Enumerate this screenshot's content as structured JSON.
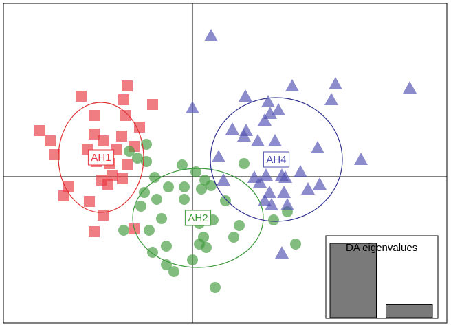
{
  "chart_data": {
    "type": "scatter",
    "xlim": [
      -2.75,
      3.7
    ],
    "ylim": [
      -2.13,
      2.52
    ],
    "series": [
      {
        "name": "AH1",
        "color": "#e8383d",
        "marker": "square",
        "x": [
          -0.95,
          -1.0,
          -0.58,
          -1.62,
          -1.42,
          -0.98,
          -0.77,
          -2.22,
          -2.07,
          -2.0,
          -1.43,
          -1.3,
          -1.03,
          -0.85,
          -1.53,
          -1.1,
          -1.2,
          -1.4,
          -1.17,
          -1.02,
          -1.32,
          -1.8,
          -1.87,
          -1.5,
          -1.3,
          -1.43,
          -0.85,
          -0.95,
          -1.23
        ],
        "y": [
          1.32,
          1.12,
          1.05,
          1.17,
          0.89,
          0.89,
          0.72,
          0.67,
          0.52,
          0.32,
          0.62,
          0.52,
          0.59,
          0.44,
          0.4,
          0.39,
          0.19,
          0.22,
          0.02,
          -0.03,
          -0.05,
          -0.15,
          -0.28,
          -0.36,
          -0.56,
          -0.8,
          -0.76,
          0.17,
          -0.11
        ],
        "ellipse": {
          "cx": -1.33,
          "cy": 0.28,
          "rx": 0.62,
          "ry": 0.8,
          "color": "#e03030"
        }
      },
      {
        "name": "AH2",
        "color": "#3f9a3a",
        "marker": "circle",
        "x": [
          -0.67,
          -0.8,
          -0.67,
          -0.15,
          -0.55,
          0.05,
          0.18,
          -0.7,
          -0.35,
          -0.12,
          0.13,
          0.27,
          -0.75,
          -0.52,
          -0.12,
          0.48,
          0.75,
          -0.45,
          0.1,
          0.3,
          0.68,
          -1.0,
          -0.63,
          -0.38,
          0.16,
          0.6,
          0.2,
          -0.58,
          0,
          -0.38,
          -0.27,
          0.33,
          1.18,
          1.38,
          1.5,
          -0.92,
          0.1
        ],
        "y": [
          0.47,
          0.27,
          0.22,
          0.17,
          -0.01,
          0.07,
          -0.05,
          -0.23,
          -0.15,
          -0.15,
          -0.18,
          -0.13,
          -0.43,
          -0.33,
          -0.33,
          -0.35,
          0.19,
          -0.61,
          -0.68,
          -0.63,
          -0.71,
          -0.78,
          -0.78,
          -1.01,
          -0.88,
          -0.88,
          -1.03,
          -1.1,
          -1.21,
          -1.28,
          -1.38,
          -1.61,
          -0.63,
          -0.51,
          -0.98,
          0.37,
          -0.98
        ],
        "ellipse": {
          "cx": 0.08,
          "cy": -0.6,
          "rx": 0.95,
          "ry": 0.72,
          "color": "#3a9a3a"
        }
      },
      {
        "name": "AH4",
        "color": "#4f4fb0",
        "marker": "triangle",
        "x": [
          0.27,
          1.45,
          2.08,
          3.16,
          0.77,
          2.02,
          0,
          1.1,
          1.25,
          1.13,
          1.05,
          0.58,
          0.78,
          0.95,
          1.2,
          0.38,
          1.82,
          2.45,
          0.45,
          0.9,
          0.98,
          1.3,
          1.57,
          1.35,
          1.07,
          1.85,
          1.68,
          1.12,
          1.33,
          1.15,
          1.38,
          1.3,
          2.28,
          0.75,
          1.05
        ],
        "y": [
          2.05,
          1.32,
          1.35,
          1.29,
          1.17,
          1.12,
          1.0,
          1.09,
          0.97,
          0.92,
          0.82,
          0.69,
          0.67,
          0.52,
          0.52,
          0.29,
          0.42,
          0.25,
          -0.05,
          -0.01,
          -0.08,
          0.02,
          0.07,
          -0.01,
          0.02,
          -0.11,
          -0.18,
          -0.23,
          -0.23,
          -0.41,
          -0.41,
          -1.11,
          -1.05,
          0.59,
          -0.35
        ],
        "ellipse": {
          "cx": 1.22,
          "cy": 0.25,
          "rx": 0.96,
          "ry": 0.9,
          "color": "#303090"
        }
      }
    ],
    "inset": {
      "title": "DA eigenvalues",
      "values": [
        100,
        18
      ],
      "ylim": [
        0,
        100
      ],
      "color": "#7a7a7a"
    }
  }
}
